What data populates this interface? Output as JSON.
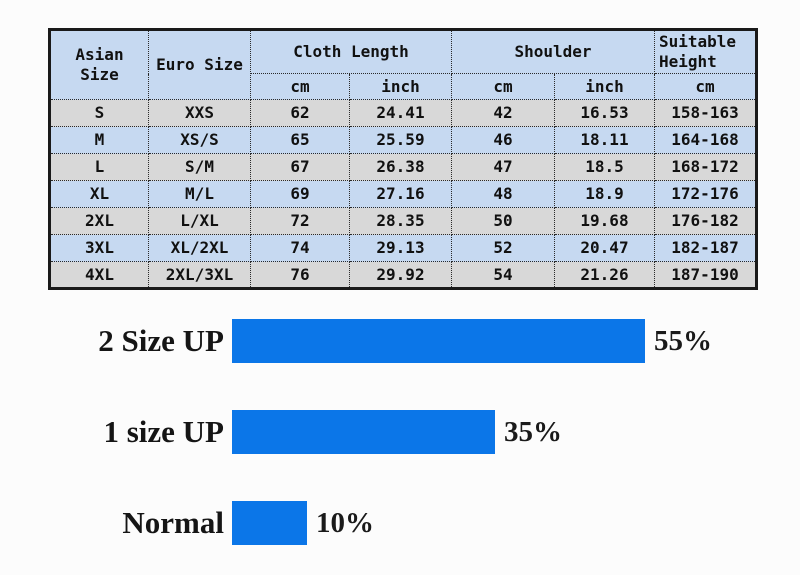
{
  "table": {
    "headers": {
      "asian_size": "Asian Size",
      "euro_size": "Euro Size",
      "cloth_length": "Cloth Length",
      "shoulder": "Shoulder",
      "suitable_height": "Suitable Height",
      "unit_cm": "cm",
      "unit_inch": "inch"
    },
    "column_keys": [
      "asian-size",
      "euro-size",
      "cloth-length-cm",
      "cloth-length-inch",
      "shoulder-cm",
      "shoulder-inch",
      "suitable-height-cm"
    ],
    "rows": [
      [
        "S",
        "XXS",
        "62",
        "24.41",
        "42",
        "16.53",
        "158-163"
      ],
      [
        "M",
        "XS/S",
        "65",
        "25.59",
        "46",
        "18.11",
        "164-168"
      ],
      [
        "L",
        "S/M",
        "67",
        "26.38",
        "47",
        "18.5",
        "168-172"
      ],
      [
        "XL",
        "M/L",
        "69",
        "27.16",
        "48",
        "18.9",
        "172-176"
      ],
      [
        "2XL",
        "L/XL",
        "72",
        "28.35",
        "50",
        "19.68",
        "176-182"
      ],
      [
        "3XL",
        "XL/2XL",
        "74",
        "29.13",
        "52",
        "20.47",
        "182-187"
      ],
      [
        "4XL",
        "2XL/3XL",
        "76",
        "29.92",
        "54",
        "21.26",
        "187-190"
      ]
    ]
  },
  "colors": {
    "header_blue": "#c6d9f1",
    "row_gray": "#d8d8d8",
    "row_blue": "#c6d9f1",
    "bar_blue": "#0b76e8"
  },
  "chart_data": {
    "type": "bar",
    "orientation": "horizontal",
    "categories": [
      "2 Size UP",
      "1 size UP",
      "Normal"
    ],
    "values": [
      55,
      35,
      10
    ],
    "value_labels": [
      "55%",
      "35%",
      "10%"
    ],
    "title": "",
    "xlabel": "",
    "ylabel": "",
    "xlim": [
      0,
      60
    ],
    "grid": false,
    "legend": false,
    "bar_color": "#0b76e8"
  }
}
